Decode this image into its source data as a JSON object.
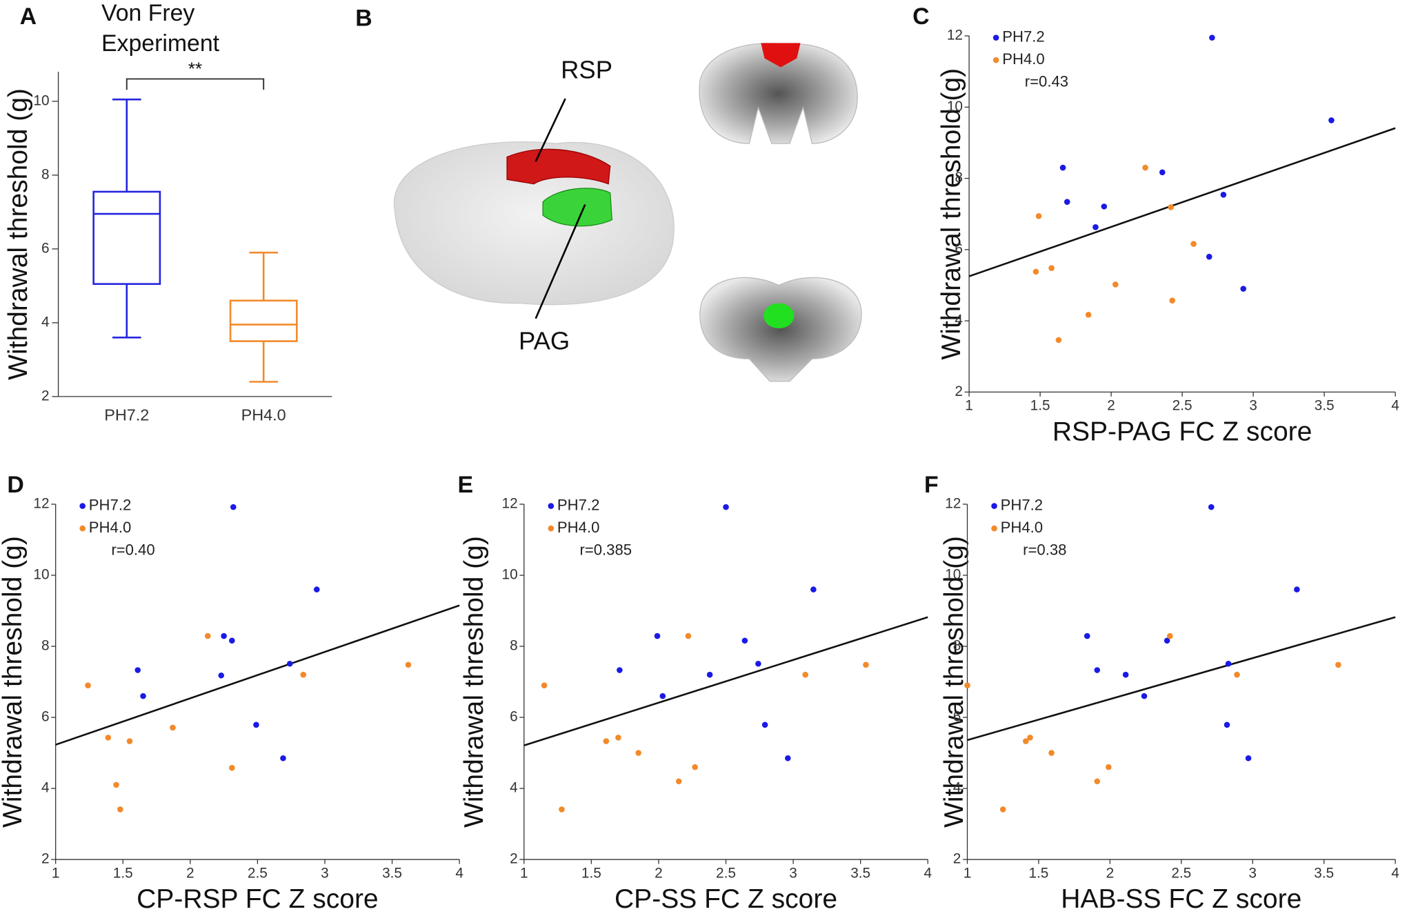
{
  "chart_data": [
    {
      "type": "box",
      "panel": "A",
      "title": [
        "Von Frey",
        "Experiment"
      ],
      "ylabel": "Withdrawal threshold (g)",
      "categories": [
        "PH7.2",
        "PH4.0"
      ],
      "colors": [
        "#2424e0",
        "#f28a2a"
      ],
      "min": [
        3.6,
        2.4
      ],
      "q1": [
        5.05,
        3.5
      ],
      "median": [
        6.95,
        3.95
      ],
      "q3": [
        7.55,
        4.6
      ],
      "max": [
        10.05,
        5.9
      ],
      "significance": "**",
      "ylim": [
        2,
        10.8
      ],
      "yticks": [
        2,
        4,
        6,
        8,
        10
      ]
    },
    {
      "type": "scatter",
      "panel": "C",
      "xlabel": "RSP-PAG FC Z score",
      "ylabel": "Withdrawal threshold (g)",
      "annotation": "r=0.43",
      "xlim": [
        1,
        4
      ],
      "ylim": [
        2,
        12
      ],
      "xticks": [
        1,
        1.5,
        2,
        2.5,
        3,
        3.5,
        4
      ],
      "yticks": [
        2,
        4,
        6,
        8,
        10,
        12
      ],
      "series": [
        {
          "name": "PH7.2",
          "color": "#1a1ae6",
          "x": [
            1.66,
            1.69,
            1.95,
            1.89,
            2.36,
            2.71,
            2.79,
            2.69,
            2.93,
            3.55
          ],
          "y": [
            8.3,
            7.34,
            7.21,
            6.63,
            8.17,
            11.95,
            7.54,
            5.8,
            4.9,
            9.63
          ]
        },
        {
          "name": "PH4.0",
          "color": "#f28a2a",
          "x": [
            1.49,
            1.47,
            1.58,
            1.63,
            1.84,
            2.03,
            2.24,
            2.42,
            2.43,
            2.58
          ],
          "y": [
            6.94,
            5.38,
            5.48,
            3.46,
            4.17,
            5.02,
            8.3,
            7.19,
            4.57,
            6.16
          ]
        }
      ],
      "fit": {
        "x": [
          1,
          4
        ],
        "y": [
          5.25,
          9.41
        ]
      }
    },
    {
      "type": "scatter",
      "panel": "D",
      "xlabel": "CP-RSP FC Z score",
      "ylabel": "Withdrawal threshold (g)",
      "annotation": "r=0.40",
      "xlim": [
        1,
        4
      ],
      "ylim": [
        2,
        12
      ],
      "xticks": [
        1,
        1.5,
        2,
        2.5,
        3,
        3.5,
        4
      ],
      "yticks": [
        2,
        4,
        6,
        8,
        10,
        12
      ],
      "series": [
        {
          "name": "PH7.2",
          "color": "#1a1ae6",
          "x": [
            1.61,
            1.65,
            2.25,
            2.31,
            2.23,
            2.32,
            2.74,
            2.49,
            2.69,
            2.94
          ],
          "y": [
            7.33,
            6.6,
            8.29,
            8.16,
            7.18,
            11.92,
            7.51,
            5.79,
            4.85,
            9.6
          ]
        },
        {
          "name": "PH4.0",
          "color": "#f28a2a",
          "x": [
            1.24,
            1.39,
            1.55,
            1.45,
            1.48,
            1.87,
            2.13,
            2.31,
            2.84,
            3.62
          ],
          "y": [
            6.9,
            5.43,
            5.33,
            4.1,
            3.41,
            5.71,
            8.29,
            4.58,
            7.2,
            7.48
          ]
        }
      ],
      "fit": {
        "x": [
          1,
          4
        ],
        "y": [
          5.23,
          9.15
        ]
      }
    },
    {
      "type": "scatter",
      "panel": "E",
      "xlabel": "CP-SS FC Z score",
      "ylabel": "Withdrawal threshold (g)",
      "annotation": "r=0.385",
      "xlim": [
        1,
        4
      ],
      "ylim": [
        2,
        12
      ],
      "xticks": [
        1,
        1.5,
        2,
        2.5,
        3,
        3.5,
        4
      ],
      "yticks": [
        2,
        4,
        6,
        8,
        10,
        12
      ],
      "series": [
        {
          "name": "PH7.2",
          "color": "#1a1ae6",
          "x": [
            1.71,
            2.03,
            1.99,
            2.38,
            2.5,
            2.64,
            2.74,
            2.79,
            2.96,
            3.15
          ],
          "y": [
            7.33,
            6.6,
            8.29,
            7.2,
            11.92,
            8.16,
            7.51,
            5.79,
            4.85,
            9.6
          ]
        },
        {
          "name": "PH4.0",
          "color": "#f28a2a",
          "x": [
            1.15,
            1.28,
            1.61,
            1.7,
            1.85,
            2.15,
            2.22,
            2.27,
            3.09,
            3.54
          ],
          "y": [
            6.9,
            3.41,
            5.33,
            5.43,
            5.0,
            4.2,
            8.29,
            4.6,
            7.2,
            7.48
          ]
        }
      ],
      "fit": {
        "x": [
          1,
          4
        ],
        "y": [
          5.21,
          8.82
        ]
      }
    },
    {
      "type": "scatter",
      "panel": "F",
      "xlabel": "HAB-SS FC Z score",
      "ylabel": "Withdrawal threshold (g)",
      "annotation": "r=0.38",
      "xlim": [
        1,
        4
      ],
      "ylim": [
        2,
        12
      ],
      "xticks": [
        1,
        1.5,
        2,
        2.5,
        3,
        3.5,
        4
      ],
      "yticks": [
        2,
        4,
        6,
        8,
        10,
        12
      ],
      "series": [
        {
          "name": "PH7.2",
          "color": "#1a1ae6",
          "x": [
            1.84,
            1.91,
            2.11,
            2.24,
            2.4,
            2.71,
            2.83,
            2.82,
            2.97,
            3.31
          ],
          "y": [
            8.29,
            7.33,
            7.2,
            6.6,
            8.16,
            11.92,
            7.51,
            5.79,
            4.85,
            9.6
          ]
        },
        {
          "name": "PH4.0",
          "color": "#f28a2a",
          "x": [
            1.0,
            1.41,
            1.44,
            1.59,
            1.25,
            1.91,
            1.99,
            2.42,
            2.89,
            3.6
          ],
          "y": [
            6.9,
            5.33,
            5.43,
            5.0,
            3.41,
            4.2,
            4.6,
            8.29,
            7.2,
            7.48
          ]
        }
      ],
      "fit": {
        "x": [
          1,
          4
        ],
        "y": [
          5.36,
          8.82
        ]
      }
    }
  ],
  "panel_B": {
    "panel": "B",
    "regions": [
      "RSP",
      "PAG"
    ]
  }
}
